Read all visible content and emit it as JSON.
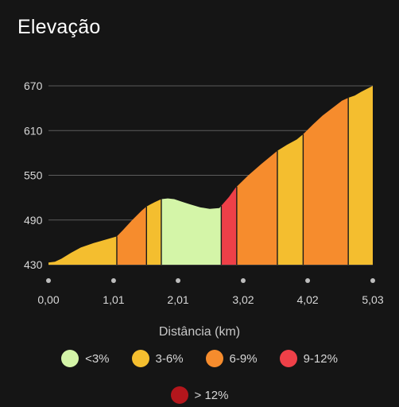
{
  "screen": {
    "title": "Elevação"
  },
  "chart_data": {
    "type": "area",
    "title": "Elevação",
    "xlabel": "Distância (km)",
    "ylabel": "",
    "xlim": [
      0.0,
      5.03
    ],
    "ylim": [
      430,
      670
    ],
    "y_ticks": [
      430,
      490,
      550,
      610,
      670
    ],
    "y_tick_labels": [
      "430",
      "490",
      "550",
      "610",
      "670"
    ],
    "x_ticks": [
      0.0,
      1.01,
      2.01,
      3.02,
      4.02,
      5.03
    ],
    "x_tick_labels": [
      "0,00",
      "1,01",
      "2,01",
      "3,02",
      "4,02",
      "5,03"
    ],
    "grid": true,
    "profile": {
      "x": [
        0.0,
        0.1,
        0.2,
        0.35,
        0.5,
        0.7,
        0.9,
        1.06,
        1.15,
        1.3,
        1.45,
        1.52,
        1.58,
        1.65,
        1.75,
        1.85,
        1.95,
        2.05,
        2.2,
        2.35,
        2.5,
        2.65,
        2.68,
        2.8,
        2.9,
        3.1,
        3.3,
        3.55,
        3.7,
        3.85,
        3.95,
        4.1,
        4.25,
        4.4,
        4.55,
        4.65,
        4.75,
        4.85,
        5.03
      ],
      "y": [
        433,
        434,
        438,
        446,
        453,
        459,
        464,
        468,
        476,
        490,
        503,
        508,
        511,
        514,
        518,
        519,
        518,
        515,
        511,
        507,
        505,
        506,
        509,
        521,
        533,
        550,
        565,
        583,
        591,
        598,
        605,
        618,
        630,
        640,
        650,
        654,
        657,
        662,
        670
      ]
    },
    "segments": [
      {
        "start": 0.0,
        "end": 1.06,
        "grade": "3-6%"
      },
      {
        "start": 1.06,
        "end": 1.52,
        "grade": "6-9%"
      },
      {
        "start": 1.52,
        "end": 1.75,
        "grade": "3-6%"
      },
      {
        "start": 1.75,
        "end": 2.68,
        "grade": "<3%"
      },
      {
        "start": 2.68,
        "end": 2.92,
        "grade": "9-12%"
      },
      {
        "start": 2.92,
        "end": 3.55,
        "grade": "6-9%"
      },
      {
        "start": 3.55,
        "end": 3.95,
        "grade": "3-6%"
      },
      {
        "start": 3.95,
        "end": 4.65,
        "grade": "6-9%"
      },
      {
        "start": 4.65,
        "end": 5.03,
        "grade": "3-6%"
      }
    ],
    "legend": {
      "placement": "bottom",
      "items": [
        {
          "label": "<3%",
          "color": "#d4f5a8"
        },
        {
          "label": "3-6%",
          "color": "#f4be2f"
        },
        {
          "label": "6-9%",
          "color": "#f68c2d"
        },
        {
          "label": "9-12%",
          "color": "#ee4048"
        },
        {
          "label": "> 12%",
          "color": "#b3161c"
        }
      ]
    }
  }
}
